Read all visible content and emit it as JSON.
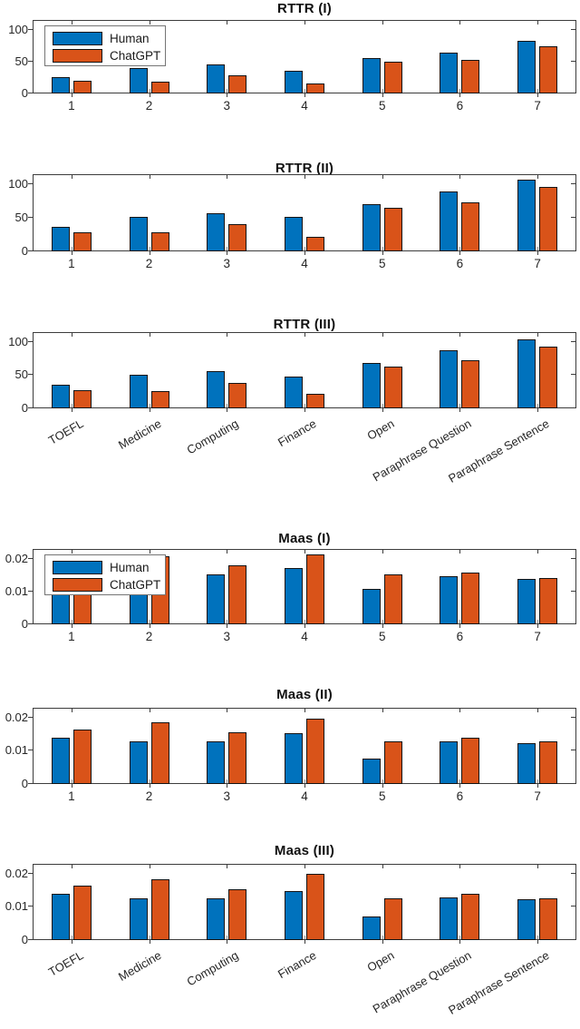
{
  "figure": {
    "background": "#ffffff"
  },
  "legend": {
    "entries": [
      {
        "label": "Human",
        "color": "#0072BD"
      },
      {
        "label": "ChatGPT",
        "color": "#D95319"
      }
    ]
  },
  "chart_data": [
    {
      "type": "bar",
      "title": "RTTR (I)",
      "categories": [
        "1",
        "2",
        "3",
        "4",
        "5",
        "6",
        "7"
      ],
      "series": [
        {
          "name": "Human",
          "color": "#0072BD",
          "values": [
            26,
            40,
            45,
            36,
            56,
            64,
            83
          ]
        },
        {
          "name": "ChatGPT",
          "color": "#D95319",
          "values": [
            20,
            19,
            29,
            16,
            49,
            52,
            74
          ]
        }
      ],
      "ylim": [
        0,
        115
      ],
      "yticks": [
        0,
        50,
        100
      ],
      "ytick_labels": [
        "0",
        "50",
        "100"
      ],
      "legend_visible": true,
      "legend_position": "northwest",
      "xtick_label_rotation": 0,
      "grid": false
    },
    {
      "type": "bar",
      "title": "RTTR (II)",
      "categories": [
        "1",
        "2",
        "3",
        "4",
        "5",
        "6",
        "7"
      ],
      "series": [
        {
          "name": "Human",
          "color": "#0072BD",
          "values": [
            37,
            52,
            57,
            51,
            70,
            89,
            107
          ]
        },
        {
          "name": "ChatGPT",
          "color": "#D95319",
          "values": [
            28,
            28,
            40,
            22,
            65,
            73,
            96
          ]
        }
      ],
      "ylim": [
        0,
        115
      ],
      "yticks": [
        0,
        50,
        100
      ],
      "ytick_labels": [
        "0",
        "50",
        "100"
      ],
      "legend_visible": false,
      "xtick_label_rotation": 0,
      "grid": false
    },
    {
      "type": "bar",
      "title": "RTTR (III)",
      "categories": [
        "TOEFL",
        "Medicine",
        "Computing",
        "Finance",
        "Open",
        "Paraphrase Question",
        "Paraphrase Sentence"
      ],
      "series": [
        {
          "name": "Human",
          "color": "#0072BD",
          "values": [
            35,
            51,
            56,
            48,
            69,
            87,
            104
          ]
        },
        {
          "name": "ChatGPT",
          "color": "#D95319",
          "values": [
            27,
            26,
            38,
            22,
            63,
            72,
            93
          ]
        }
      ],
      "ylim": [
        0,
        115
      ],
      "yticks": [
        0,
        50,
        100
      ],
      "ytick_labels": [
        "0",
        "50",
        "100"
      ],
      "legend_visible": false,
      "xtick_label_rotation": -30,
      "grid": false
    },
    {
      "type": "bar",
      "title": "Maas (I)",
      "categories": [
        "1",
        "2",
        "3",
        "4",
        "5",
        "6",
        "7"
      ],
      "series": [
        {
          "name": "Human",
          "color": "#0072BD",
          "values": [
            0.014,
            0.013,
            0.0153,
            0.0171,
            0.0108,
            0.0147,
            0.0138
          ]
        },
        {
          "name": "ChatGPT",
          "color": "#D95319",
          "values": [
            0.0165,
            0.0208,
            0.018,
            0.0214,
            0.0153,
            0.0159,
            0.0142
          ]
        }
      ],
      "ylim": [
        0,
        0.023
      ],
      "yticks": [
        0,
        0.01,
        0.02
      ],
      "ytick_labels": [
        "0",
        "0.01",
        "0.02"
      ],
      "legend_visible": true,
      "legend_position": "northwest",
      "xtick_label_rotation": 0,
      "grid": false
    },
    {
      "type": "bar",
      "title": "Maas (II)",
      "categories": [
        "1",
        "2",
        "3",
        "4",
        "5",
        "6",
        "7"
      ],
      "series": [
        {
          "name": "Human",
          "color": "#0072BD",
          "values": [
            0.0141,
            0.0129,
            0.013,
            0.0153,
            0.0077,
            0.0129,
            0.0124
          ]
        },
        {
          "name": "ChatGPT",
          "color": "#D95319",
          "values": [
            0.0165,
            0.0185,
            0.0156,
            0.0197,
            0.0129,
            0.0141,
            0.0129
          ]
        }
      ],
      "ylim": [
        0,
        0.023
      ],
      "yticks": [
        0,
        0.01,
        0.02
      ],
      "ytick_labels": [
        "0",
        "0.01",
        "0.02"
      ],
      "legend_visible": false,
      "xtick_label_rotation": 0,
      "grid": false
    },
    {
      "type": "bar",
      "title": "Maas (III)",
      "categories": [
        "TOEFL",
        "Medicine",
        "Computing",
        "Finance",
        "Open",
        "Paraphrase Question",
        "Paraphrase Sentence"
      ],
      "series": [
        {
          "name": "Human",
          "color": "#0072BD",
          "values": [
            0.0139,
            0.0125,
            0.0125,
            0.0147,
            0.007,
            0.0128,
            0.0123
          ]
        },
        {
          "name": "ChatGPT",
          "color": "#D95319",
          "values": [
            0.0165,
            0.0183,
            0.0154,
            0.02,
            0.0126,
            0.0141,
            0.0125
          ]
        }
      ],
      "ylim": [
        0,
        0.023
      ],
      "yticks": [
        0,
        0.01,
        0.02
      ],
      "ytick_labels": [
        "0",
        "0.01",
        "0.02"
      ],
      "legend_visible": false,
      "xtick_label_rotation": -30,
      "grid": false
    }
  ]
}
